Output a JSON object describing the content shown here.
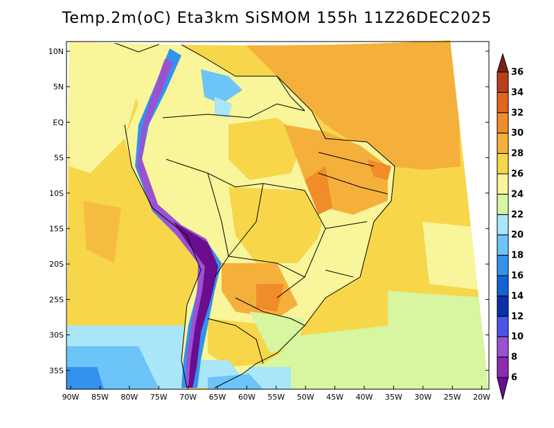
{
  "title": "Temp.2m(oC) Eta3km SiSMOM 155h 11Z26DEC2025",
  "lat_labels": [
    "10N",
    "5N",
    "EQ",
    "5S",
    "10S",
    "15S",
    "20S",
    "25S",
    "30S",
    "35S"
  ],
  "lon_labels": [
    "90W",
    "85W",
    "80W",
    "75W",
    "70W",
    "65W",
    "60W",
    "55W",
    "50W",
    "45W",
    "40W",
    "35W",
    "30W",
    "25W",
    "20W"
  ],
  "colorbar": {
    "labels": [
      "6",
      "8",
      "10",
      "12",
      "14",
      "16",
      "18",
      "20",
      "22",
      "24",
      "26",
      "28",
      "30",
      "32",
      "34",
      "36"
    ],
    "colors": [
      "#6a0d8f",
      "#8c2bb0",
      "#9a52d0",
      "#4a55e8",
      "#0b2fa8",
      "#1463d6",
      "#3392ee",
      "#6cc4f8",
      "#a8e6f8",
      "#d8f5a0",
      "#f8f59a",
      "#f7d64a",
      "#f5b03c",
      "#f08c2a",
      "#e0651e",
      "#b8401a",
      "#7a2410"
    ],
    "unit": "oC"
  }
}
